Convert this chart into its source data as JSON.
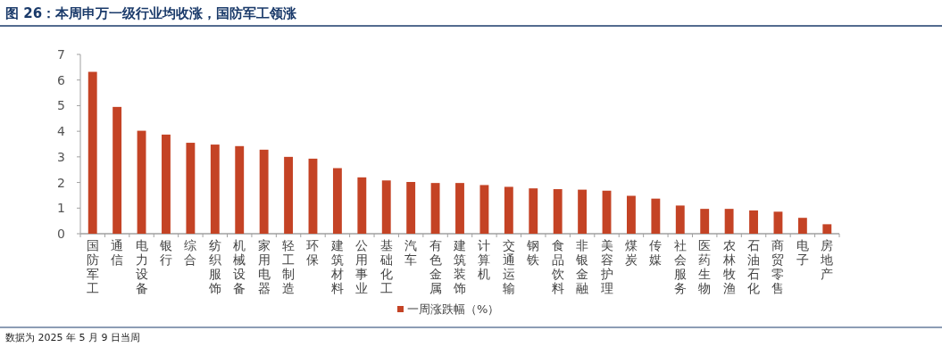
{
  "chart_data": {
    "type": "bar",
    "title": "图 26：本周申万一级行业均收涨，国防军工领涨",
    "categories": [
      "国防军工",
      "通信",
      "电力设备",
      "银行",
      "综合",
      "纺织服饰",
      "机械设备",
      "家用电器",
      "轻工制造",
      "环保",
      "建筑材料",
      "公用事业",
      "基础化工",
      "汽车",
      "有色金属",
      "建筑装饰",
      "计算机",
      "交通运输",
      "钢铁",
      "食品饮料",
      "非银金融",
      "美容护理",
      "煤炭",
      "传媒",
      "社会服务",
      "医药生物",
      "农林牧渔",
      "石油石化",
      "商贸零售",
      "电子",
      "房地产"
    ],
    "series": [
      {
        "name": "一周涨跌幅（%）",
        "color": "#c44325",
        "values": [
          6.32,
          4.95,
          4.02,
          3.87,
          3.55,
          3.48,
          3.42,
          3.28,
          3.0,
          2.93,
          2.56,
          2.2,
          2.08,
          2.02,
          1.98,
          1.98,
          1.9,
          1.83,
          1.77,
          1.74,
          1.72,
          1.68,
          1.48,
          1.37,
          1.1,
          0.97,
          0.97,
          0.91,
          0.86,
          0.62,
          0.37
        ]
      }
    ],
    "ylim": [
      0,
      7
    ],
    "yticks": [
      0,
      1,
      2,
      3,
      4,
      5,
      6,
      7
    ],
    "grid": false,
    "legend": "bottom",
    "annotations": [
      "数据为 2025 年 5 月 9 日当周"
    ]
  }
}
